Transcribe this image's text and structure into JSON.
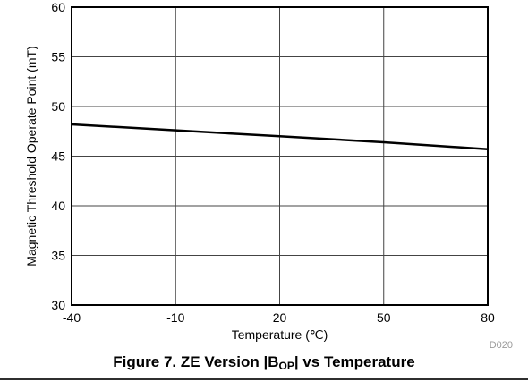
{
  "chart_data": {
    "type": "line",
    "xlabel": "Temperature (℃)",
    "ylabel": "Magnetic Threshold Operate Point (mT)",
    "xlim": [
      -40,
      80
    ],
    "ylim": [
      30,
      60
    ],
    "xticks": [
      -40,
      -10,
      20,
      50,
      80
    ],
    "yticks": [
      30,
      35,
      40,
      45,
      50,
      55,
      60
    ],
    "grid": true,
    "series": [
      {
        "x": [
          -40,
          -10,
          20,
          50,
          80
        ],
        "y": [
          48.2,
          47.6,
          47.0,
          46.4,
          45.7
        ]
      }
    ],
    "code": "D020"
  },
  "caption": {
    "prefix": "Figure 7. ZE Version |B",
    "subscript": "OP",
    "suffix": "| vs Temperature"
  }
}
